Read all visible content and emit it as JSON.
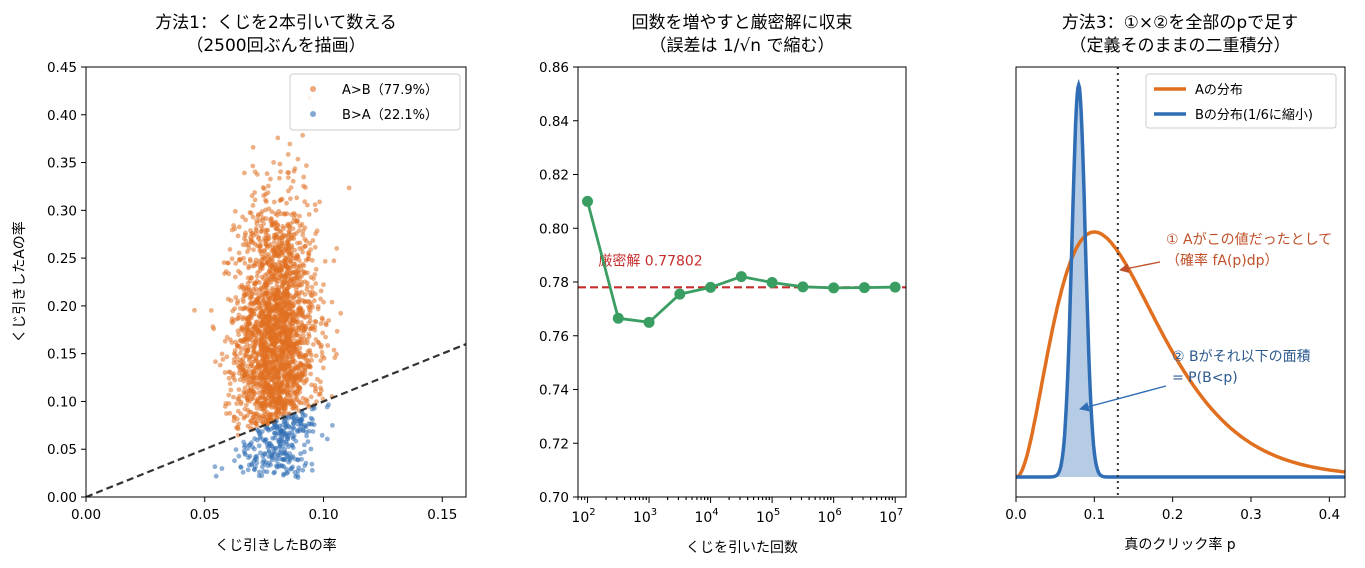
{
  "chart_data": [
    {
      "type": "scatter",
      "title": "方法1：くじを2本引いて数える\n（2500回ぶんを描画）",
      "xlabel": "くじ引きしたBの率",
      "ylabel": "くじ引きしたAの率",
      "xlim": [
        0.0,
        0.16
      ],
      "ylim": [
        0.0,
        0.45
      ],
      "xticks": [
        "0.00",
        "0.05",
        "0.10",
        "0.15"
      ],
      "yticks": [
        "0.00",
        "0.05",
        "0.10",
        "0.15",
        "0.20",
        "0.25",
        "0.30",
        "0.35",
        "0.40",
        "0.45"
      ],
      "legend_position": "upper right",
      "series": [
        {
          "name": "A>B（77.9%）",
          "color": "#e07020",
          "count": 1948,
          "x_mean": 0.08,
          "x_sd": 0.0085,
          "y_mean": 0.16,
          "y_sd": 0.075
        },
        {
          "name": "B>A（22.1%）",
          "color": "#2f6db5",
          "count": 552,
          "x_mean": 0.08,
          "x_sd": 0.0085,
          "y_mean": 0.16,
          "y_sd": 0.075
        }
      ],
      "reference_line": {
        "slope": 1,
        "style": "dashed",
        "color": "#333333"
      }
    },
    {
      "type": "line",
      "title": "回数を増やすと厳密解に収束\n（誤差は 1/√n で縮む）",
      "xlabel": "くじを引いた回数",
      "x_scale": "log",
      "xlim": [
        70,
        15000000
      ],
      "ylim": [
        0.7,
        0.86
      ],
      "xtick_exponents": [
        "2",
        "3",
        "4",
        "5",
        "6",
        "7"
      ],
      "xtick_base": "10",
      "yticks": [
        "0.70",
        "0.72",
        "0.74",
        "0.76",
        "0.78",
        "0.80",
        "0.82",
        "0.84",
        "0.86"
      ],
      "series": [
        {
          "color": "#3a9e62",
          "x": [
            100,
            316,
            1000,
            3162,
            10000,
            31623,
            100000,
            316228,
            1000000,
            3162278,
            10000000
          ],
          "y": [
            0.81,
            0.7665,
            0.765,
            0.7755,
            0.778,
            0.782,
            0.7798,
            0.7782,
            0.7778,
            0.7779,
            0.7781
          ]
        }
      ],
      "reference_line": {
        "y": 0.77802,
        "style": "dashed",
        "color": "#c62d2d"
      },
      "annotation": "厳密解 0.77802"
    },
    {
      "type": "area",
      "title": "方法3：①×②を全部のpで足す\n（定義そのままの二重積分）",
      "xlabel": "真のクリック率 p",
      "xlim": [
        0.0,
        0.42
      ],
      "xticks": [
        "0.0",
        "0.1",
        "0.2",
        "0.3",
        "0.4"
      ],
      "y_axis_ticks": false,
      "legend_position": "upper right",
      "series": [
        {
          "name": "Aの分布",
          "color": "#e07020",
          "mode": 0.1,
          "peak": 1.0
        },
        {
          "name": "Bの分布(1/6に縮小)",
          "color": "#2f6db5",
          "mode": 0.08,
          "sd": 0.0085,
          "peak": 1.6,
          "fill_below_p": 0.13
        }
      ],
      "vertical_line": {
        "x": 0.13,
        "style": "dotted",
        "color": "#333333"
      },
      "annotations": [
        {
          "text": "① Aがこの値だったとして\n（確率 fA(p)dp）",
          "color": "#c0502a"
        },
        {
          "text": "② Bがそれ以下の面積\n= P(B<p)",
          "color": "#2d5a8e"
        }
      ]
    }
  ]
}
